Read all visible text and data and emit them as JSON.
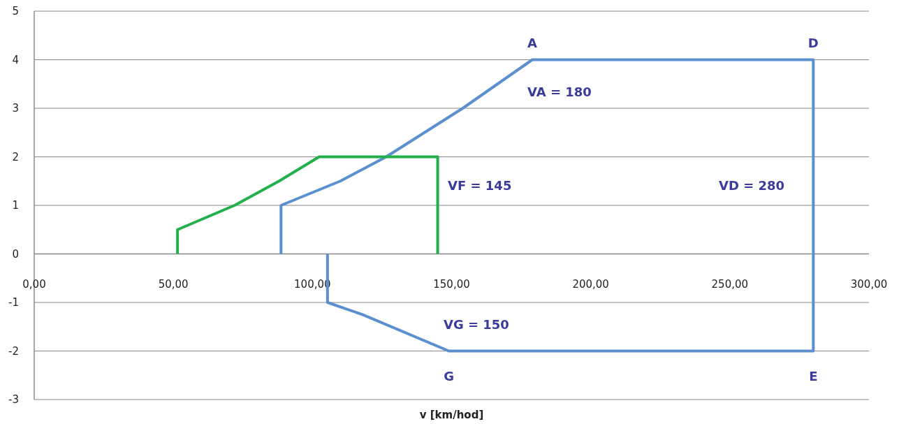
{
  "chart_data": {
    "type": "line",
    "xlabel": "v [km/hod]",
    "xlim": [
      0,
      300
    ],
    "ylim": [
      -3,
      5
    ],
    "xticks": [
      {
        "value": 0,
        "label": "0,00"
      },
      {
        "value": 50,
        "label": "50,00"
      },
      {
        "value": 100,
        "label": "100,00"
      },
      {
        "value": 150,
        "label": "150,00"
      },
      {
        "value": 200,
        "label": "200,00"
      },
      {
        "value": 250,
        "label": "250,00"
      },
      {
        "value": 300,
        "label": "300,00"
      }
    ],
    "yticks": [
      -3,
      -2,
      -1,
      0,
      1,
      2,
      3,
      4,
      5
    ],
    "grid": "y",
    "marker": "none",
    "line_style": "solid",
    "series": [
      {
        "color": "#5b8fd0",
        "x": [
          88.7,
          88.7,
          110,
          126.5,
          154,
          179,
          280,
          280,
          149,
          118,
          105.4,
          105.4
        ],
        "values": [
          0,
          1,
          1.5,
          2,
          3,
          4,
          4,
          -2,
          -2,
          -1.25,
          -1,
          0
        ]
      },
      {
        "color": "#21b04b",
        "x": [
          51.5,
          51.5,
          72,
          88,
          102.4,
          145,
          145
        ],
        "values": [
          0,
          0.5,
          1,
          1.5,
          2,
          2,
          0
        ]
      }
    ],
    "annotations": [
      {
        "text": "A",
        "x": 179,
        "y": 4
      },
      {
        "text": "D",
        "x": 280,
        "y": 4
      },
      "VA = 180",
      "VF = 145",
      "VD = 280",
      "VG = 150",
      {
        "text": "G",
        "x": 149,
        "y": -2
      },
      {
        "text": "E",
        "x": 280,
        "y": -2
      }
    ]
  }
}
